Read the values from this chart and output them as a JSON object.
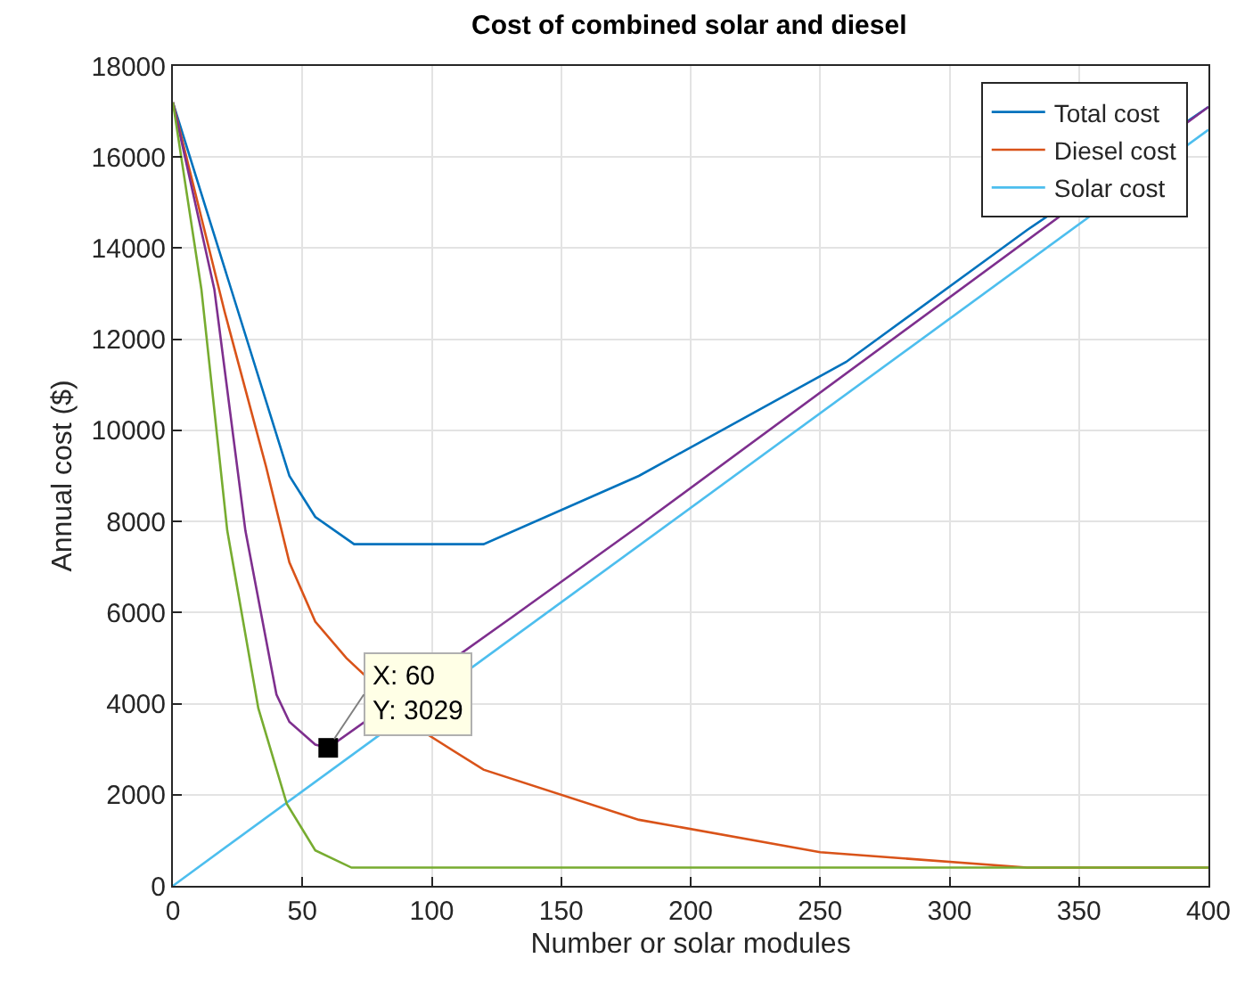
{
  "chart_data": {
    "type": "line",
    "title": "Cost of combined solar and diesel",
    "xlabel": "Number or solar modules",
    "ylabel": "Annual cost ($)",
    "xlim": [
      0,
      400
    ],
    "xticks": [
      0,
      50,
      100,
      150,
      200,
      250,
      300,
      350,
      400
    ],
    "ylim": [
      0,
      18000
    ],
    "yticks": [
      0,
      2000,
      4000,
      6000,
      8000,
      10000,
      12000,
      14000,
      16000,
      18000
    ],
    "grid": true,
    "legend": "top right",
    "marker": "none",
    "line_style": "solid",
    "annotations": [
      {
        "text": "X: 60\nY: 3029",
        "x": 60,
        "y": 3029
      }
    ],
    "series": [
      {
        "name": "Total cost",
        "color": "#0072bd",
        "x": [
          0,
          45,
          55,
          70,
          120,
          180,
          260,
          330,
          400
        ],
        "values": [
          17200,
          9000,
          8100,
          7500,
          7500,
          9000,
          11500,
          14400,
          17100
        ]
      },
      {
        "name": "Diesel cost",
        "color": "#d95319",
        "x": [
          0,
          20,
          36,
          45,
          55,
          67,
          99,
          120,
          180,
          250,
          330,
          400
        ],
        "values": [
          17200,
          12600,
          9200,
          7100,
          5800,
          5000,
          3300,
          2550,
          1450,
          740,
          400,
          400
        ]
      },
      {
        "name": "Solar cost",
        "color": "#4dbeee",
        "x": [
          0,
          400
        ],
        "values": [
          0,
          16600
        ]
      },
      {
        "color": "#7e2f8e",
        "x": [
          0,
          16,
          28,
          40,
          45,
          55,
          60,
          131,
          180,
          400
        ],
        "values": [
          17200,
          13100,
          7800,
          4200,
          3600,
          3100,
          3029,
          5900,
          7900,
          17100
        ]
      },
      {
        "color": "#77ac30",
        "x": [
          0,
          11,
          21,
          33,
          44,
          55,
          69,
          400
        ],
        "values": [
          17200,
          13100,
          7800,
          3900,
          1800,
          780,
          400,
          400
        ]
      }
    ]
  }
}
